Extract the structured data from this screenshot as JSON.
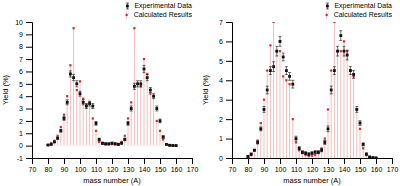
{
  "chart_data": [
    {
      "type": "scatter",
      "xlabel": "mass number (A)",
      "ylabel": "Yield (%)",
      "xlim": [
        70,
        170
      ],
      "ylim": [
        -1,
        10
      ],
      "xticks": [
        70,
        80,
        90,
        100,
        110,
        120,
        130,
        140,
        150,
        160,
        170
      ],
      "yticks": [
        -1,
        0,
        1,
        2,
        3,
        4,
        5,
        6,
        7,
        8,
        9,
        10
      ],
      "grid": false,
      "legend": "upper right",
      "x": [
        80,
        82,
        84,
        86,
        88,
        90,
        92,
        94,
        96,
        98,
        100,
        102,
        104,
        106,
        108,
        110,
        112,
        114,
        116,
        118,
        120,
        122,
        124,
        126,
        128,
        130,
        132,
        134,
        136,
        138,
        140,
        142,
        144,
        146,
        148,
        150,
        152,
        154,
        156,
        158,
        160
      ],
      "series": [
        {
          "name": "Experimental Data",
          "type": "scatter",
          "marker": "square",
          "color": "#111111",
          "values": [
            0.05,
            0.1,
            0.3,
            0.6,
            1.2,
            2.2,
            3.5,
            5.8,
            5.5,
            5.0,
            4.2,
            3.5,
            3.2,
            3.4,
            3.2,
            1.8,
            0.5,
            0.2,
            0.15,
            0.15,
            0.2,
            0.15,
            0.1,
            0.2,
            0.5,
            1.8,
            3.0,
            4.8,
            5.0,
            5.0,
            6.2,
            5.5,
            4.5,
            4.0,
            3.0,
            2.0,
            0.7,
            0.1,
            0.03,
            0.01,
            0.005
          ],
          "yerr": [
            0.04,
            0.04,
            0.05,
            0.08,
            0.1,
            0.15,
            0.2,
            0.25,
            0.25,
            0.25,
            0.2,
            0.2,
            0.2,
            0.2,
            0.2,
            0.15,
            0.1,
            0.07,
            0.07,
            0.07,
            0.07,
            0.07,
            0.07,
            0.08,
            0.1,
            0.15,
            0.2,
            0.25,
            0.25,
            0.25,
            0.3,
            0.25,
            0.2,
            0.2,
            0.2,
            0.15,
            0.1,
            0.05,
            0.03,
            0.02,
            0.01
          ]
        },
        {
          "name": "Calculated Results",
          "type": "stem",
          "marker": "square",
          "color": "#cc3333",
          "values": [
            0.05,
            0.2,
            0.4,
            0.8,
            1.5,
            2.5,
            4.0,
            6.5,
            9.5,
            4.5,
            5.2,
            3.8,
            3.3,
            3.5,
            2.2,
            1.2,
            0.3,
            0.15,
            0.1,
            0.1,
            0.12,
            0.1,
            0.15,
            0.3,
            0.8,
            2.2,
            3.5,
            9.5,
            5.0,
            4.8,
            7.0,
            5.8,
            4.2,
            4.0,
            2.0,
            1.2,
            0.5,
            0.1,
            0.03,
            0.01,
            0.005
          ]
        }
      ]
    },
    {
      "type": "scatter",
      "xlabel": "mass number (A)",
      "ylabel": "Yield (%)",
      "xlim": [
        70,
        170
      ],
      "ylim": [
        0,
        7
      ],
      "xticks": [
        70,
        80,
        90,
        100,
        110,
        120,
        130,
        140,
        150,
        160,
        170
      ],
      "yticks": [
        0,
        1,
        2,
        3,
        4,
        5,
        6,
        7
      ],
      "grid": false,
      "legend": "upper right",
      "x": [
        80,
        82,
        84,
        86,
        88,
        90,
        92,
        94,
        96,
        98,
        100,
        102,
        104,
        106,
        108,
        110,
        112,
        114,
        116,
        118,
        120,
        122,
        124,
        126,
        128,
        130,
        132,
        134,
        136,
        138,
        140,
        142,
        144,
        146,
        148,
        150,
        152,
        154,
        156,
        158,
        160
      ],
      "series": [
        {
          "name": "Experimental Data",
          "type": "scatter",
          "marker": "square",
          "color": "#111111",
          "values": [
            0.08,
            0.2,
            0.4,
            0.8,
            1.5,
            2.5,
            3.5,
            4.5,
            4.7,
            5.5,
            6.0,
            5.2,
            4.5,
            4.2,
            3.8,
            1.0,
            0.5,
            0.3,
            0.25,
            0.2,
            0.25,
            0.3,
            0.3,
            0.4,
            0.8,
            1.5,
            3.5,
            4.5,
            5.5,
            6.3,
            5.5,
            5.3,
            4.5,
            4.3,
            2.5,
            1.8,
            0.7,
            0.2,
            0.05,
            0.02,
            0.01
          ],
          "yerr": [
            0.04,
            0.05,
            0.05,
            0.08,
            0.1,
            0.15,
            0.2,
            0.2,
            0.25,
            0.25,
            0.25,
            0.2,
            0.2,
            0.2,
            0.2,
            0.12,
            0.08,
            0.07,
            0.07,
            0.07,
            0.07,
            0.07,
            0.07,
            0.08,
            0.1,
            0.15,
            0.2,
            0.2,
            0.25,
            0.25,
            0.25,
            0.25,
            0.2,
            0.2,
            0.15,
            0.12,
            0.08,
            0.06,
            0.04,
            0.02,
            0.01
          ]
        },
        {
          "name": "Calculated Results",
          "type": "stem",
          "marker": "square",
          "color": "#cc3333",
          "values": [
            0.05,
            0.15,
            0.4,
            0.9,
            1.8,
            3.0,
            4.5,
            5.8,
            7.0,
            5.5,
            5.5,
            4.2,
            4.0,
            3.8,
            2.0,
            0.8,
            0.4,
            0.25,
            0.15,
            0.1,
            0.12,
            0.15,
            0.25,
            0.5,
            1.0,
            2.5,
            4.5,
            7.0,
            5.5,
            5.5,
            6.0,
            5.5,
            4.5,
            4.2,
            2.5,
            1.5,
            0.5,
            0.15,
            0.05,
            0.01,
            0.005
          ]
        }
      ]
    }
  ]
}
